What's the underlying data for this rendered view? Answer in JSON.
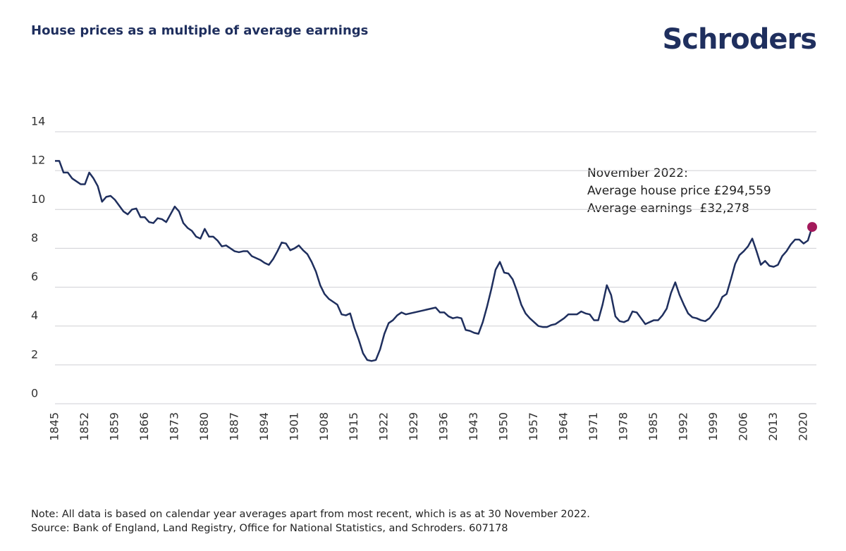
{
  "chart_data": {
    "type": "line",
    "title": "House prices as a multiple of average earnings",
    "logo": "Schroders",
    "annotation": [
      "November 2022:",
      "Average house price £294,559",
      "Average earnings  £32,278"
    ],
    "notes": [
      "Note: All data is based on calendar year averages apart from most recent, which is as at 30 November 2022.",
      "Source: Bank of England, Land Registry, Office for National Statistics, and Schroders. 607178"
    ],
    "color": "#1f2f5e",
    "highlight_color": "#a3195b",
    "grid": true,
    "x": [
      1845,
      1846,
      1847,
      1848,
      1849,
      1850,
      1851,
      1852,
      1853,
      1854,
      1855,
      1856,
      1857,
      1858,
      1859,
      1860,
      1861,
      1862,
      1863,
      1864,
      1865,
      1866,
      1867,
      1868,
      1869,
      1870,
      1871,
      1872,
      1873,
      1874,
      1875,
      1876,
      1877,
      1878,
      1879,
      1880,
      1881,
      1882,
      1883,
      1884,
      1885,
      1886,
      1887,
      1888,
      1889,
      1890,
      1891,
      1892,
      1893,
      1894,
      1895,
      1896,
      1897,
      1898,
      1899,
      1900,
      1901,
      1902,
      1903,
      1904,
      1905,
      1906,
      1907,
      1908,
      1909,
      1910,
      1911,
      1912,
      1913,
      1914,
      1915,
      1916,
      1917,
      1918,
      1919,
      1920,
      1921,
      1922,
      1923,
      1924,
      1925,
      1926,
      1927,
      1928,
      1929,
      1930,
      1931,
      1932,
      1933,
      1934,
      1935,
      1936,
      1937,
      1938,
      1939,
      1940,
      1941,
      1942,
      1943,
      1944,
      1945,
      1946,
      1947,
      1948,
      1949,
      1950,
      1951,
      1952,
      1953,
      1954,
      1955,
      1956,
      1957,
      1958,
      1959,
      1960,
      1961,
      1962,
      1963,
      1964,
      1965,
      1966,
      1967,
      1968,
      1969,
      1970,
      1971,
      1972,
      1973,
      1974,
      1975,
      1976,
      1977,
      1978,
      1979,
      1980,
      1981,
      1982,
      1983,
      1984,
      1985,
      1986,
      1987,
      1988,
      1989,
      1990,
      1991,
      1992,
      1993,
      1994,
      1995,
      1996,
      1997,
      1998,
      1999,
      2000,
      2001,
      2002,
      2003,
      2004,
      2005,
      2006,
      2007,
      2008,
      2009,
      2010,
      2011,
      2012,
      2013,
      2014,
      2015,
      2016,
      2017,
      2018,
      2019,
      2020,
      2021,
      2022
    ],
    "values": [
      12.5,
      12.5,
      11.9,
      11.9,
      11.6,
      11.45,
      11.3,
      11.3,
      11.9,
      11.6,
      11.2,
      10.4,
      10.65,
      10.7,
      10.5,
      10.2,
      9.9,
      9.75,
      10.0,
      10.05,
      9.6,
      9.6,
      9.35,
      9.3,
      9.55,
      9.5,
      9.35,
      9.75,
      10.15,
      9.9,
      9.3,
      9.05,
      8.9,
      8.6,
      8.5,
      9.0,
      8.6,
      8.6,
      8.4,
      8.1,
      8.15,
      8.0,
      7.85,
      7.8,
      7.85,
      7.85,
      7.6,
      7.5,
      7.4,
      7.25,
      7.15,
      7.45,
      7.85,
      8.3,
      8.25,
      7.9,
      8.0,
      8.15,
      7.9,
      7.7,
      7.3,
      6.8,
      6.1,
      5.65,
      5.4,
      5.25,
      5.1,
      4.6,
      4.55,
      4.65,
      3.9,
      3.3,
      2.6,
      2.25,
      2.2,
      2.25,
      2.8,
      3.6,
      4.15,
      4.3,
      4.55,
      4.7,
      4.6,
      4.65,
      4.7,
      4.75,
      4.8,
      4.85,
      4.9,
      4.95,
      4.7,
      4.7,
      4.5,
      4.4,
      4.45,
      4.4,
      3.8,
      3.75,
      3.65,
      3.6,
      4.2,
      5.0,
      5.9,
      6.9,
      7.3,
      6.75,
      6.7,
      6.4,
      5.8,
      5.1,
      4.65,
      4.4,
      4.2,
      4.0,
      3.95,
      3.95,
      4.05,
      4.1,
      4.25,
      4.4,
      4.6,
      4.6,
      4.6,
      4.75,
      4.65,
      4.6,
      4.3,
      4.3,
      5.1,
      6.1,
      5.6,
      4.5,
      4.25,
      4.2,
      4.3,
      4.75,
      4.7,
      4.4,
      4.1,
      4.2,
      4.3,
      4.3,
      4.55,
      4.9,
      5.7,
      6.25,
      5.6,
      5.1,
      4.65,
      4.45,
      4.4,
      4.3,
      4.25,
      4.4,
      4.7,
      5.0,
      5.5,
      5.65,
      6.4,
      7.2,
      7.65,
      7.85,
      8.1,
      8.5,
      7.85,
      7.15,
      7.35,
      7.1,
      7.05,
      7.15,
      7.6,
      7.85,
      8.2,
      8.45,
      8.45,
      8.25,
      8.4,
      9.1
    ],
    "xlim": [
      1845,
      2022
    ],
    "xticks": [
      1845,
      1852,
      1859,
      1866,
      1873,
      1880,
      1887,
      1894,
      1901,
      1908,
      1915,
      1922,
      1929,
      1936,
      1943,
      1950,
      1957,
      1964,
      1971,
      1978,
      1985,
      1992,
      1999,
      2006,
      2013,
      2020
    ],
    "ylim": [
      0,
      14
    ],
    "yticks": [
      0,
      2,
      4,
      6,
      8,
      10,
      12,
      14
    ]
  }
}
